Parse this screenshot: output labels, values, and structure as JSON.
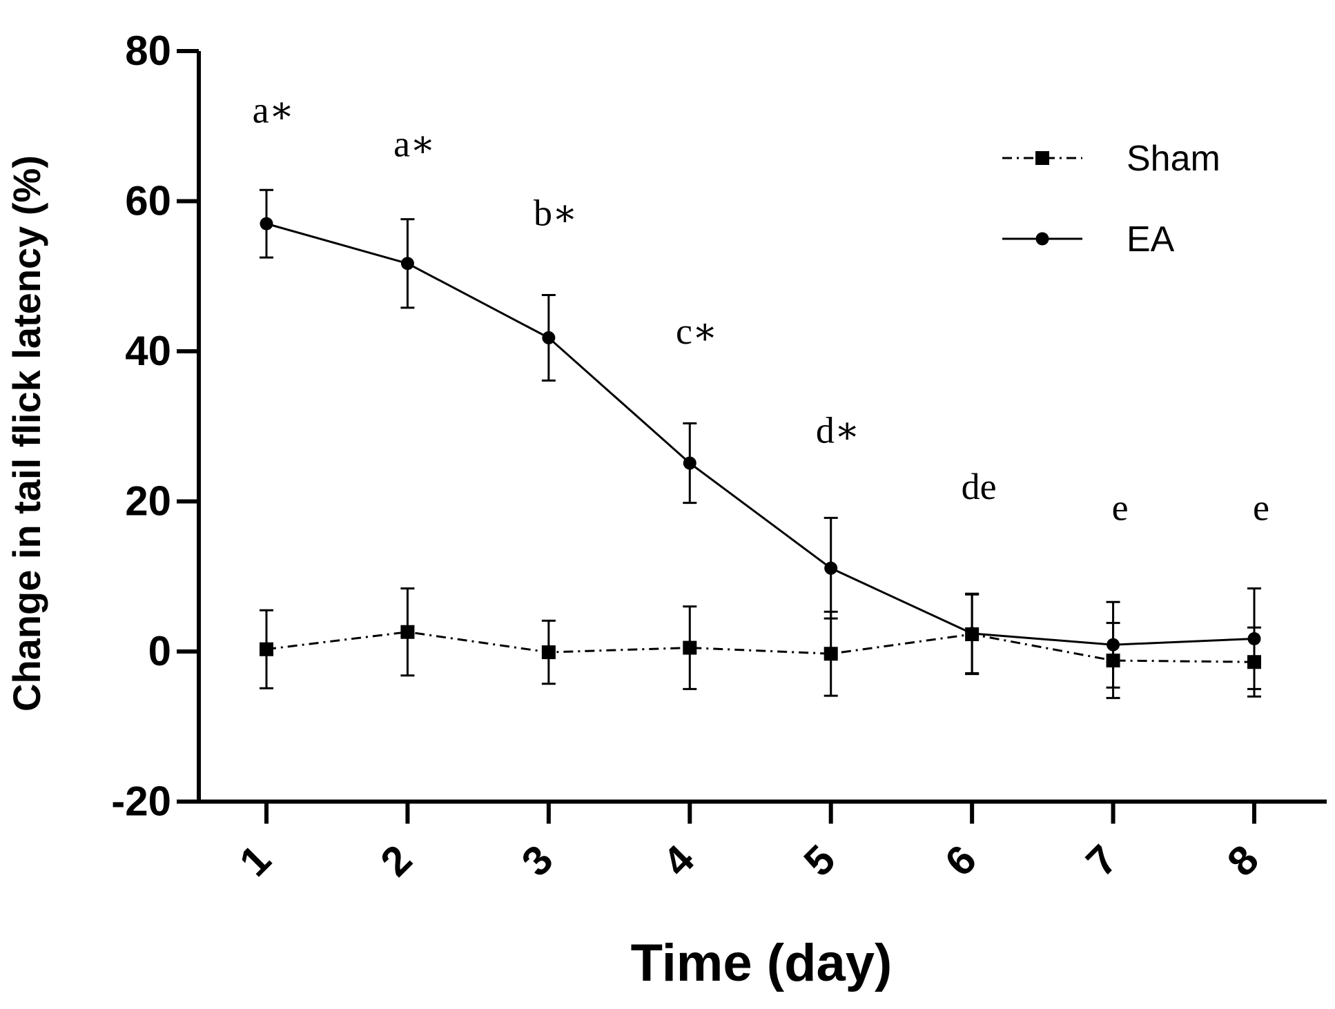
{
  "chart_data": {
    "type": "line",
    "title": "",
    "xlabel": "Time (day)",
    "ylabel": "Change in tail flick latency (%)",
    "x": [
      1,
      2,
      3,
      4,
      5,
      6,
      7,
      8
    ],
    "x_tick_labels": [
      "1",
      "2",
      "3",
      "4",
      "5",
      "6",
      "7",
      "8"
    ],
    "ylim": [
      -20,
      80
    ],
    "y_ticks": [
      -20,
      0,
      20,
      40,
      60,
      80
    ],
    "y_tick_labels": [
      "-20",
      "0",
      "20",
      "40",
      "60",
      "80"
    ],
    "grid": false,
    "legend_position": "top-right",
    "series": [
      {
        "name": "Sham",
        "marker": "square",
        "line_style": "dash-dot",
        "color": "#000000",
        "values": [
          0.3,
          2.6,
          -0.1,
          0.5,
          -0.3,
          2.3,
          -1.2,
          -1.4
        ],
        "error": [
          5.2,
          5.8,
          4.2,
          5.5,
          5.6,
          5.3,
          5.0,
          4.6
        ]
      },
      {
        "name": "EA",
        "marker": "circle",
        "line_style": "solid",
        "color": "#000000",
        "values": [
          57.0,
          51.7,
          41.8,
          25.1,
          11.1,
          2.4,
          0.9,
          1.7
        ],
        "error": [
          4.5,
          5.9,
          5.7,
          5.3,
          6.7,
          5.3,
          5.7,
          6.7
        ]
      }
    ],
    "annotations": [
      {
        "x": 1,
        "text": "a∗",
        "y_data": 70.5
      },
      {
        "x": 2,
        "text": "a∗",
        "y_data": 66.0
      },
      {
        "x": 3,
        "text": "b∗",
        "y_data": 56.8
      },
      {
        "x": 4,
        "text": "c∗",
        "y_data": 41.0
      },
      {
        "x": 5,
        "text": "d∗",
        "y_data": 27.8
      },
      {
        "x": 6,
        "text": "de",
        "y_data": 20.3
      },
      {
        "x": 7,
        "text": "e",
        "y_data": 17.5
      },
      {
        "x": 8,
        "text": "e",
        "y_data": 17.5
      }
    ]
  }
}
